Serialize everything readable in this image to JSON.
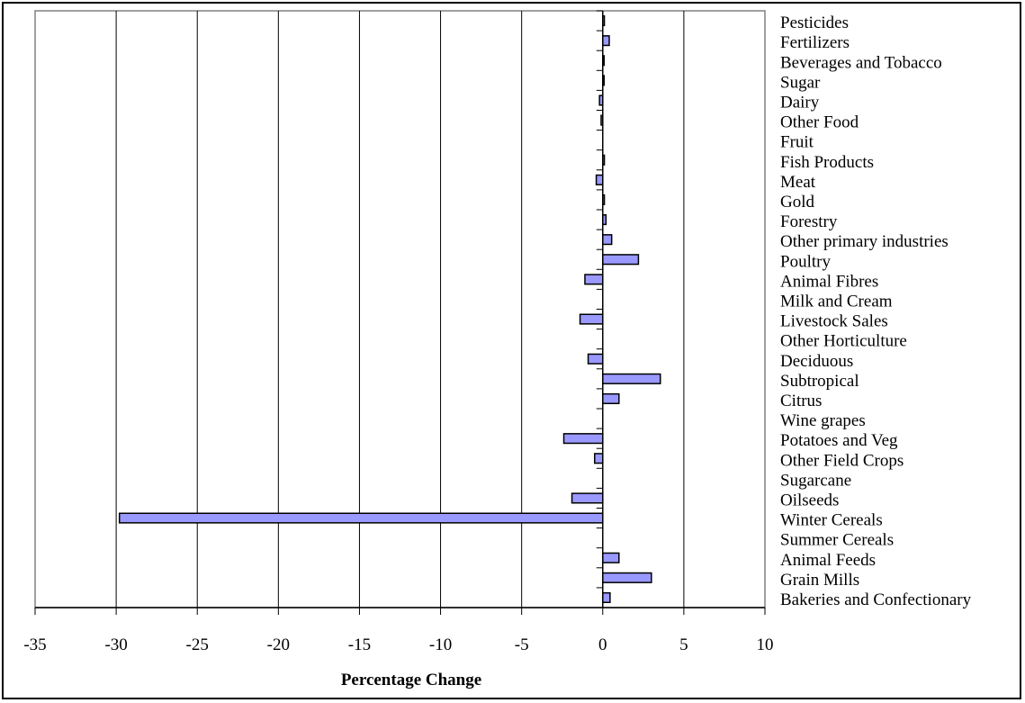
{
  "chart_data": {
    "type": "bar",
    "orientation": "horizontal",
    "title": "",
    "xlabel": "Percentage Change",
    "ylabel": "",
    "xlim": [
      -35,
      10
    ],
    "x_ticks": [
      "-35",
      "-30",
      "-25",
      "-20",
      "-15",
      "-10",
      "-5",
      "0",
      "5",
      "10"
    ],
    "grid": "vertical gridlines at major ticks",
    "legend": "none",
    "bar_color": "#9999ff",
    "categories": [
      "Pesticides",
      "Fertilizers",
      "Beverages and Tobacco",
      "Sugar",
      "Dairy",
      "Other Food",
      "Fruit",
      "Fish Products",
      "Meat",
      "Gold",
      "Forestry",
      "Other primary industries",
      "Poultry",
      "Animal Fibres",
      "Milk and Cream",
      "Livestock Sales",
      "Other Horticulture",
      "Deciduous",
      "Subtropical",
      "Citrus",
      "Wine grapes",
      "Potatoes and Veg",
      "Other Field Crops",
      "Sugarcane",
      "Oilseeds",
      "Winter Cereals",
      "Summer Cereals",
      "Animal Feeds",
      "Grain Mills",
      "Bakeries and Confectionary"
    ],
    "values": [
      0.1,
      0.4,
      0.05,
      0.05,
      -0.2,
      -0.1,
      0.0,
      0.1,
      -0.4,
      0.1,
      0.2,
      0.55,
      2.2,
      -1.1,
      0.0,
      -1.4,
      0.0,
      -0.9,
      3.55,
      1.0,
      0.0,
      -2.4,
      -0.5,
      0.0,
      -1.9,
      -29.8,
      0.0,
      1.0,
      3.0,
      0.45
    ]
  }
}
